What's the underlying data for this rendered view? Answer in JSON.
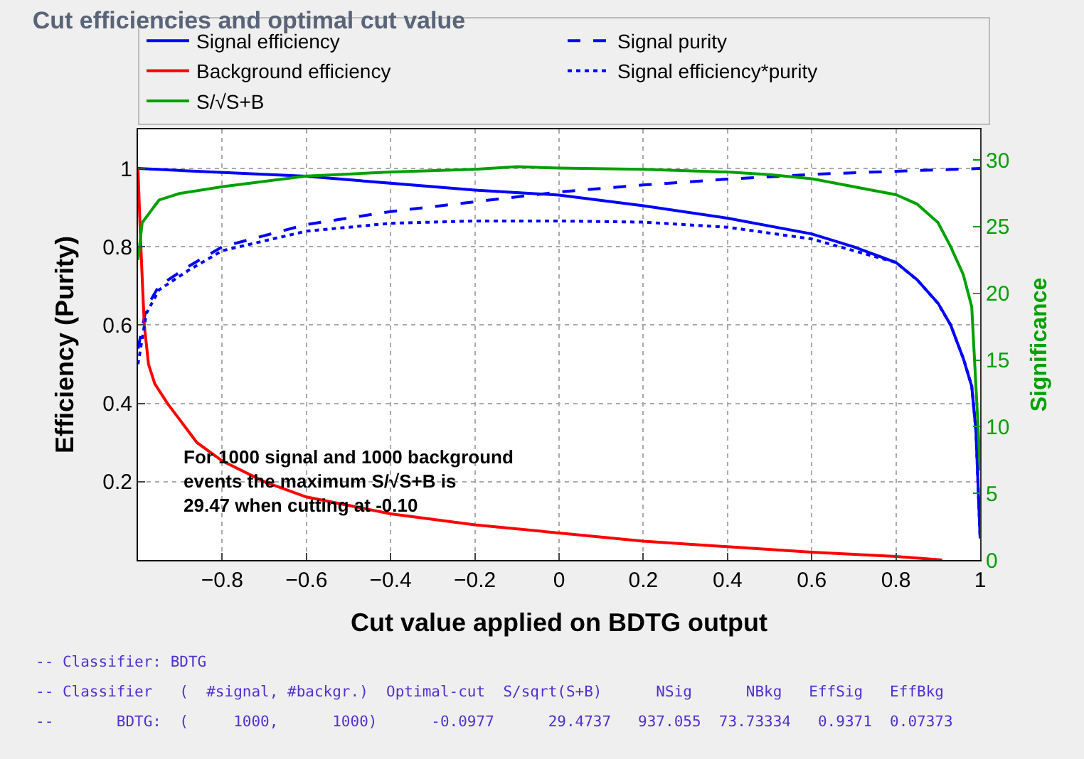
{
  "chart_data": {
    "type": "line",
    "title": "Cut efficiencies and optimal cut value",
    "xlabel": "Cut value applied on BDTG output",
    "ylabel": "Efficiency (Purity)",
    "y2label": "Significance",
    "xlim": [
      -1,
      1
    ],
    "xticks": [
      {
        "value": -0.8,
        "label": "−0.8"
      },
      {
        "value": -0.6,
        "label": "−0.6"
      },
      {
        "value": -0.4,
        "label": "−0.4"
      },
      {
        "value": -0.2,
        "label": "−0.2"
      },
      0,
      0.2,
      0.4,
      0.6,
      0.8,
      1
    ],
    "ylim": [
      0,
      1.1
    ],
    "yticks": [
      0.2,
      0.4,
      0.6,
      0.8,
      1
    ],
    "y2lim": [
      0,
      32.3
    ],
    "y2ticks": [
      0,
      5,
      10,
      15,
      20,
      25,
      30
    ],
    "grid": true,
    "legend": "top",
    "marker": "none",
    "series": [
      {
        "name": "Signal efficiency",
        "color": "#0000ff",
        "line_style": "solid",
        "x": [
          -1,
          -0.6,
          -0.2,
          0,
          0.2,
          0.4,
          0.6,
          0.7,
          0.8,
          0.85,
          0.9,
          0.93,
          0.96,
          0.98,
          0.99,
          1
        ],
        "values": [
          1.0,
          0.98,
          0.945,
          0.932,
          0.905,
          0.873,
          0.833,
          0.8,
          0.76,
          0.716,
          0.656,
          0.6,
          0.515,
          0.444,
          0.33,
          0.055
        ]
      },
      {
        "name": "Signal purity",
        "color": "#0000ff",
        "line_style": "dashed",
        "x": [
          -1,
          -0.98,
          -0.95,
          -0.88,
          -0.8,
          -0.6,
          -0.4,
          -0.2,
          0,
          0.2,
          0.4,
          0.6,
          0.8,
          1
        ],
        "values": [
          0.54,
          0.645,
          0.7,
          0.75,
          0.8,
          0.857,
          0.89,
          0.915,
          0.94,
          0.958,
          0.973,
          0.985,
          0.993,
          1.0
        ]
      },
      {
        "name": "Background efficiency",
        "color": "#ff0000",
        "line_style": "solid",
        "x": [
          -1,
          -0.995,
          -0.99,
          -0.985,
          -0.975,
          -0.96,
          -0.93,
          -0.86,
          -0.8,
          -0.7,
          -0.6,
          -0.4,
          -0.2,
          0,
          0.2,
          0.4,
          0.6,
          0.8,
          0.91
        ],
        "values": [
          1.0,
          0.85,
          0.72,
          0.6,
          0.5,
          0.45,
          0.4,
          0.3,
          0.253,
          0.2,
          0.161,
          0.118,
          0.09,
          0.069,
          0.048,
          0.034,
          0.02,
          0.009,
          0.0
        ]
      },
      {
        "name": "Signal efficiency*purity",
        "color": "#0000ff",
        "line_style": "dotted",
        "x": [
          -1,
          -0.98,
          -0.95,
          -0.88,
          -0.8,
          -0.6,
          -0.4,
          -0.2,
          0,
          0.2,
          0.4,
          0.6,
          0.7,
          0.8,
          0.85,
          0.9,
          0.93,
          0.96,
          0.98,
          0.99,
          1
        ],
        "values": [
          0.5,
          0.63,
          0.69,
          0.74,
          0.79,
          0.84,
          0.86,
          0.866,
          0.866,
          0.863,
          0.85,
          0.82,
          0.79,
          0.76,
          0.716,
          0.655,
          0.6,
          0.515,
          0.444,
          0.33,
          0.055
        ]
      },
      {
        "name": "S/√S+B",
        "color": "#00a000",
        "line_style": "solid",
        "axis": "y2",
        "x": [
          -1,
          -0.99,
          -0.95,
          -0.9,
          -0.8,
          -0.6,
          -0.4,
          -0.2,
          -0.1,
          0,
          0.2,
          0.4,
          0.5,
          0.6,
          0.7,
          0.8,
          0.85,
          0.9,
          0.93,
          0.96,
          0.98,
          0.995,
          1
        ],
        "values": [
          22.5,
          25.3,
          27.0,
          27.5,
          28.0,
          28.8,
          29.1,
          29.3,
          29.5,
          29.4,
          29.3,
          29.1,
          28.9,
          28.6,
          28.0,
          27.4,
          26.7,
          25.3,
          23.5,
          21.4,
          19.0,
          10,
          6.7
        ]
      }
    ],
    "annotations": [
      "For 1000 signal and 1000 background\nevents the maximum S/√S+B is\n29.47 when cutting at -0.10",
      "-- Classifier: BDTG",
      "-- Classifier   (  #signal, #backgr.)  Optimal-cut  S/sqrt(S+B)      NSig      NBkg   EffSig   EffBkg",
      "--       BDTG:  (     1000,      1000)      -0.0977      29.4737   937.055  73.73334   0.9371  0.07373"
    ]
  }
}
